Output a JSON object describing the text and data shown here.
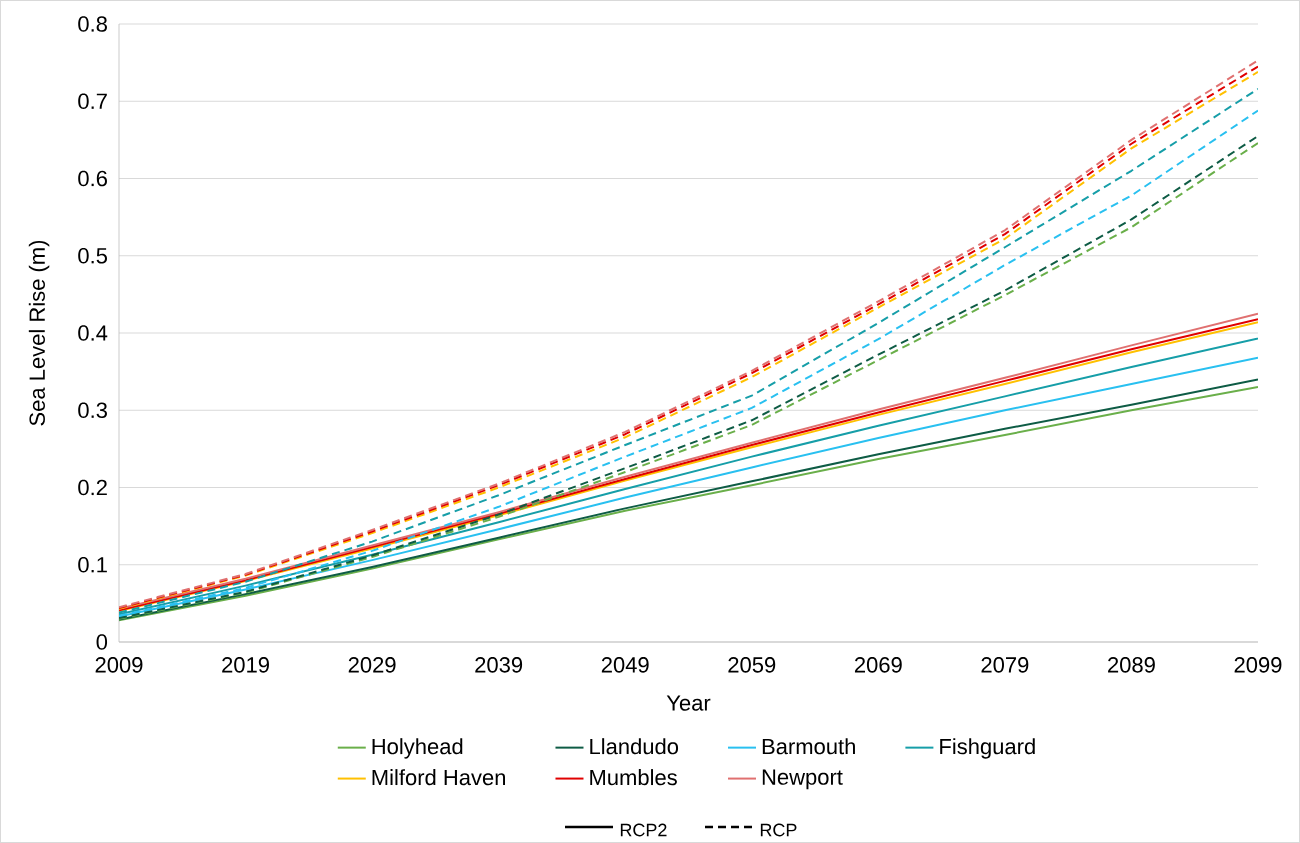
{
  "chart_data": {
    "type": "line",
    "xlabel": "Year",
    "ylabel": "Sea Level Rise (m)",
    "x": [
      2009,
      2019,
      2029,
      2039,
      2049,
      2059,
      2069,
      2079,
      2089,
      2099
    ],
    "xlim": [
      2009,
      2099
    ],
    "ylim": [
      0,
      0.8
    ],
    "xticks": [
      2009,
      2019,
      2029,
      2039,
      2049,
      2059,
      2069,
      2079,
      2089,
      2099
    ],
    "yticks": [
      0,
      0.1,
      0.2,
      0.3,
      0.4,
      0.5,
      0.6,
      0.7,
      0.8
    ],
    "grid": "y",
    "legend": "bottom",
    "series": [
      {
        "name": "Holyhead",
        "color": "#6aaf4a",
        "line_style": "solid",
        "values": [
          0.028,
          0.06,
          0.095,
          0.133,
          0.17,
          0.203,
          0.237,
          0.268,
          0.3,
          0.33
        ]
      },
      {
        "name": "Llandudo",
        "color": "#0e5c45",
        "line_style": "solid",
        "values": [
          0.029,
          0.062,
          0.097,
          0.135,
          0.173,
          0.208,
          0.243,
          0.276,
          0.307,
          0.34
        ]
      },
      {
        "name": "Barmouth",
        "color": "#29c0f0",
        "line_style": "solid",
        "values": [
          0.033,
          0.068,
          0.106,
          0.146,
          0.187,
          0.226,
          0.264,
          0.3,
          0.334,
          0.368
        ]
      },
      {
        "name": "Fishguard",
        "color": "#169ea8",
        "line_style": "solid",
        "values": [
          0.036,
          0.073,
          0.113,
          0.155,
          0.198,
          0.24,
          0.28,
          0.318,
          0.356,
          0.393
        ]
      },
      {
        "name": "Milford Haven",
        "color": "#ffc000",
        "line_style": "solid",
        "values": [
          0.04,
          0.079,
          0.121,
          0.164,
          0.209,
          0.252,
          0.294,
          0.334,
          0.375,
          0.414
        ]
      },
      {
        "name": "Mumbles",
        "color": "#e00000",
        "line_style": "solid",
        "values": [
          0.041,
          0.08,
          0.123,
          0.166,
          0.211,
          0.255,
          0.297,
          0.338,
          0.379,
          0.418
        ]
      },
      {
        "name": "Newport",
        "color": "#e07070",
        "line_style": "solid",
        "values": [
          0.043,
          0.082,
          0.125,
          0.168,
          0.214,
          0.258,
          0.301,
          0.342,
          0.384,
          0.425
        ]
      },
      {
        "color": "#6aaf4a",
        "line_style": "dashed",
        "values": [
          0.03,
          0.064,
          0.11,
          0.162,
          0.22,
          0.281,
          0.365,
          0.449,
          0.537,
          0.646
        ]
      },
      {
        "color": "#0e5c45",
        "line_style": "dashed",
        "values": [
          0.031,
          0.065,
          0.112,
          0.165,
          0.225,
          0.287,
          0.372,
          0.455,
          0.547,
          0.655
        ]
      },
      {
        "color": "#29c0f0",
        "line_style": "dashed",
        "values": [
          0.034,
          0.07,
          0.118,
          0.175,
          0.24,
          0.303,
          0.392,
          0.488,
          0.578,
          0.688
        ]
      },
      {
        "color": "#169ea8",
        "line_style": "dashed",
        "values": [
          0.038,
          0.078,
          0.13,
          0.19,
          0.255,
          0.319,
          0.413,
          0.511,
          0.61,
          0.716
        ]
      },
      {
        "color": "#ffc000",
        "line_style": "dashed",
        "values": [
          0.043,
          0.086,
          0.141,
          0.2,
          0.265,
          0.343,
          0.433,
          0.522,
          0.639,
          0.738
        ]
      },
      {
        "color": "#e00000",
        "line_style": "dashed",
        "values": [
          0.044,
          0.087,
          0.143,
          0.203,
          0.269,
          0.348,
          0.437,
          0.528,
          0.645,
          0.745
        ]
      },
      {
        "color": "#e07070",
        "line_style": "dashed",
        "values": [
          0.045,
          0.088,
          0.145,
          0.205,
          0.272,
          0.351,
          0.441,
          0.533,
          0.65,
          0.753
        ]
      }
    ],
    "annotations": [
      "RCP2",
      "RCP"
    ]
  }
}
